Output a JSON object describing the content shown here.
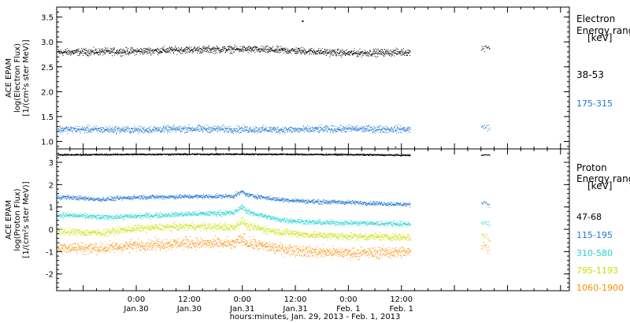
{
  "chart_data": [
    {
      "type": "scatter",
      "panel": "electron",
      "ylabel_lines": [
        "ACE EPAM",
        "log(Electron Flux)",
        "[1/(cm²s ster MeV)]"
      ],
      "ylim": [
        0.85,
        3.7
      ],
      "yticks": [
        "1.0",
        "1.5",
        "2.0",
        "2.5",
        "3.0",
        "3.5"
      ],
      "legend_title_lines": [
        "Electron",
        "Energy range",
        "[keV]"
      ],
      "series": [
        {
          "name": "38-53",
          "color": "#000000",
          "base": 2.82,
          "noise": 0.06,
          "x": [
            -16,
            0,
            12,
            24,
            36,
            48,
            60,
            78,
            79,
            80
          ],
          "y": [
            2.8,
            2.82,
            2.85,
            2.86,
            2.83,
            2.78,
            2.8,
            2.85,
            2.92,
            2.9
          ]
        },
        {
          "name": "175-315",
          "color": "#1f77d4",
          "base": 1.25,
          "noise": 0.06,
          "x": [
            -16,
            0,
            12,
            24,
            36,
            48,
            60,
            78,
            79,
            80
          ],
          "y": [
            1.25,
            1.24,
            1.26,
            1.25,
            1.24,
            1.26,
            1.25,
            1.28,
            1.3,
            1.27
          ]
        }
      ],
      "annotations": {
        "outliers": [
          {
            "x": 37.5,
            "y": 3.43
          },
          {
            "x": 58.5,
            "y": 0.9
          }
        ]
      }
    },
    {
      "type": "scatter",
      "panel": "proton",
      "ylabel_lines": [
        "ACE EPAM",
        "log(Proton Flux)",
        "[1/(cm²s ster MeV)]"
      ],
      "ylim": [
        -2.75,
        3.6
      ],
      "yticks": [
        "-2",
        "-1",
        "0",
        "1",
        "2",
        "3"
      ],
      "legend_title_lines": [
        "Proton",
        "Energy range",
        "[keV]"
      ],
      "series": [
        {
          "name": "47-68",
          "color": "#000000",
          "base": 3.35,
          "noise": 0.03,
          "x": [
            -16,
            0,
            24,
            48,
            62,
            78,
            79,
            80
          ],
          "y": [
            3.35,
            3.37,
            3.38,
            3.36,
            3.33,
            3.33,
            3.35,
            3.33
          ]
        },
        {
          "name": "115-195",
          "color": "#1f77d4",
          "base": 1.4,
          "noise": 0.08,
          "x": [
            -16,
            -8,
            0,
            12,
            22,
            24,
            25,
            32,
            40,
            48,
            62,
            78,
            79,
            80
          ],
          "y": [
            1.45,
            1.35,
            1.45,
            1.48,
            1.5,
            1.7,
            1.55,
            1.35,
            1.25,
            1.22,
            1.12,
            1.2,
            1.22,
            1.1
          ]
        },
        {
          "name": "310-580",
          "color": "#22d3d3",
          "base": 0.6,
          "noise": 0.1,
          "x": [
            -16,
            -8,
            0,
            12,
            22,
            24,
            25,
            32,
            40,
            48,
            62,
            78,
            79,
            80
          ],
          "y": [
            0.65,
            0.55,
            0.6,
            0.7,
            0.75,
            1.05,
            0.8,
            0.45,
            0.32,
            0.3,
            0.25,
            0.3,
            0.35,
            0.2
          ]
        },
        {
          "name": "795-1193",
          "color": "#c8e000",
          "base": 0.0,
          "noise": 0.14,
          "x": [
            -16,
            -8,
            0,
            12,
            22,
            24,
            25,
            32,
            40,
            48,
            62,
            78,
            79,
            80
          ],
          "y": [
            -0.1,
            -0.15,
            0.05,
            0.15,
            0.1,
            0.4,
            0.15,
            -0.1,
            -0.25,
            -0.3,
            -0.35,
            -0.25,
            -0.3,
            -0.45
          ]
        },
        {
          "name": "1060-1900",
          "color": "#ff8c00",
          "base": -0.8,
          "noise": 0.22,
          "x": [
            -16,
            -8,
            0,
            12,
            22,
            24,
            25,
            32,
            40,
            48,
            62,
            78,
            79,
            80
          ],
          "y": [
            -0.8,
            -0.85,
            -0.7,
            -0.6,
            -0.65,
            -0.4,
            -0.6,
            -0.85,
            -1.0,
            -1.05,
            -1.0,
            -0.8,
            -0.75,
            -0.95
          ]
        }
      ]
    }
  ],
  "xaxis": {
    "xlim": [
      -18,
      98
    ],
    "data_end": 62,
    "data_gap_resume": 78,
    "data_gap_end": 80,
    "ticks": [
      {
        "x": 0,
        "time": "0:00",
        "date": "Jan.30"
      },
      {
        "x": 12,
        "time": "12:00",
        "date": "Jan.30"
      },
      {
        "x": 24,
        "time": "0:00",
        "date": "Jan.31"
      },
      {
        "x": 36,
        "time": "12:00",
        "date": "Jan.31"
      },
      {
        "x": 48,
        "time": "0:00",
        "date": "Feb. 1"
      },
      {
        "x": 60,
        "time": "12:00",
        "date": "Feb. 1"
      }
    ],
    "title": "hours:minutes, Jan. 29, 2013 - Feb.  1, 2013"
  }
}
